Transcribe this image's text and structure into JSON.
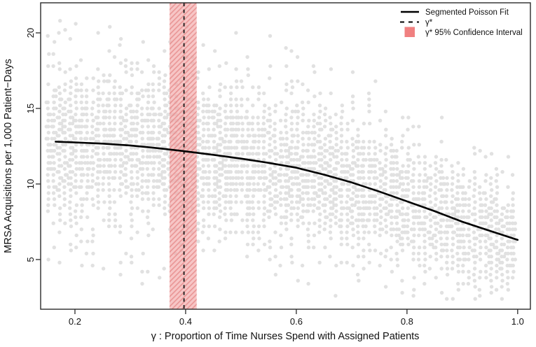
{
  "chart_data": {
    "type": "scatter",
    "title": "",
    "xlabel": "γ : Proportion of Time Nurses Spend with Assigned Patients",
    "ylabel": "MRSA Acquisitions per 1,000 Patient−Days",
    "xlim": [
      0.138,
      1.023
    ],
    "ylim": [
      1.713,
      21.99
    ],
    "grid": false,
    "x_ticks": {
      "values": [
        0.2,
        0.4,
        0.6,
        0.8,
        1.0
      ],
      "labels": [
        "0.2",
        "0.4",
        "0.6",
        "0.8",
        "1.0"
      ]
    },
    "y_ticks": {
      "values": [
        5,
        10,
        15,
        20
      ],
      "labels": [
        "5",
        "10",
        "15",
        "20"
      ]
    },
    "legend": {
      "position": "top-right",
      "entries": [
        {
          "symbol": "solid-line",
          "label": "Segmented Poisson Fit",
          "color": "#000000"
        },
        {
          "symbol": "dashed-line",
          "label": "γ*",
          "color": "#000000"
        },
        {
          "symbol": "filled-square",
          "label": "γ*  95% Confidence Interval",
          "color": "#F08080"
        }
      ]
    },
    "fit_curve": {
      "name": "Segmented Poisson Fit",
      "x": [
        0.165,
        0.2,
        0.25,
        0.3,
        0.35,
        0.397,
        0.45,
        0.5,
        0.55,
        0.6,
        0.65,
        0.7,
        0.75,
        0.8,
        0.85,
        0.9,
        0.95,
        1.0
      ],
      "y": [
        12.8,
        12.75,
        12.67,
        12.55,
        12.37,
        12.17,
        11.93,
        11.68,
        11.4,
        11.08,
        10.62,
        10.1,
        9.5,
        8.85,
        8.2,
        7.5,
        6.9,
        6.3
      ]
    },
    "breakpoint": {
      "gamma_star": 0.397,
      "ci_low": 0.371,
      "ci_high": 0.42
    },
    "scatter": {
      "description": "Simulated MRSA acquisition rates; vertical strip of quantized points per gamma value, spread shrinking as gamma grows",
      "color": "#E1E1E1",
      "gamma_start": 0.152,
      "gamma_end": 1.0,
      "gamma_step": 0.01,
      "value_step": 0.4,
      "sd_factor": 0.92,
      "prob_scale": 1.28,
      "mean_jitter": 0.25,
      "value_min": 2.35,
      "value_max": 21.6,
      "dot_radius": 2.7,
      "seed": 11
    },
    "colors": {
      "band_fill": "#F3A9A9",
      "band_hatch": "#E58989",
      "fit_line": "#000000",
      "dashed_line": "#1a1a1a",
      "box": "#2b2b2b"
    }
  }
}
